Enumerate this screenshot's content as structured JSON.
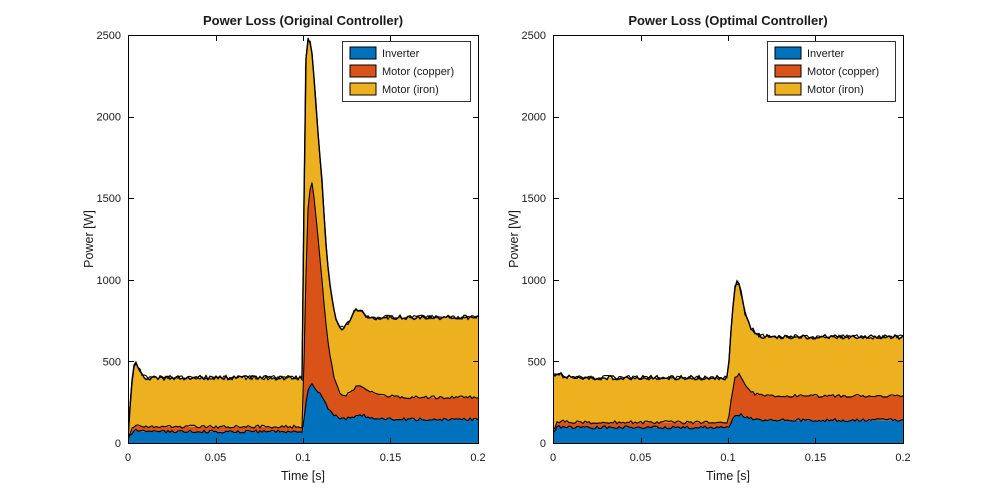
{
  "figure": {
    "background": "#ffffff",
    "axis_color": "#000000",
    "text_color": "#191919"
  },
  "chart_data": [
    {
      "type": "area",
      "stacked": true,
      "title": "Power Loss (Original Controller)",
      "xlabel": "Time [s]",
      "ylabel": "Power [W]",
      "xlim": [
        0,
        0.2
      ],
      "ylim": [
        0,
        2500
      ],
      "xticks": [
        0,
        0.05,
        0.1,
        0.15,
        0.2
      ],
      "xtick_labels": [
        "0",
        "0.05",
        "0.1",
        "0.15",
        "0.2"
      ],
      "yticks": [
        0,
        500,
        1000,
        1500,
        2000,
        2500
      ],
      "ytick_labels": [
        "0",
        "500",
        "1000",
        "1500",
        "2000",
        "2500"
      ],
      "grid": false,
      "legend": {
        "position": "northeast-inside",
        "entries": [
          "Inverter",
          "Motor (copper)",
          "Motor (iron)"
        ]
      },
      "colors": [
        "#0072BD",
        "#D95319",
        "#EDB120"
      ],
      "edge_color": "#000000",
      "x": [
        0,
        0.002,
        0.004,
        0.006,
        0.008,
        0.01,
        0.02,
        0.04,
        0.06,
        0.08,
        0.09,
        0.1,
        0.101,
        0.103,
        0.105,
        0.107,
        0.109,
        0.111,
        0.113,
        0.115,
        0.118,
        0.121,
        0.124,
        0.127,
        0.13,
        0.133,
        0.136,
        0.14,
        0.145,
        0.15,
        0.16,
        0.17,
        0.18,
        0.19,
        0.2
      ],
      "series": [
        {
          "name": "Inverter",
          "values": [
            15,
            60,
            75,
            72,
            70,
            70,
            70,
            70,
            70,
            70,
            70,
            70,
            200,
            340,
            360,
            340,
            310,
            280,
            240,
            200,
            170,
            150,
            150,
            155,
            165,
            170,
            165,
            155,
            150,
            148,
            145,
            145,
            145,
            145,
            145
          ]
        },
        {
          "name": "Motor (copper)",
          "values": [
            5,
            20,
            35,
            32,
            30,
            30,
            30,
            30,
            30,
            30,
            30,
            30,
            600,
            1150,
            1250,
            1100,
            900,
            700,
            500,
            350,
            220,
            150,
            140,
            150,
            180,
            185,
            170,
            150,
            140,
            138,
            135,
            135,
            135,
            135,
            135
          ]
        },
        {
          "name": "Motor (iron)",
          "values": [
            10,
            280,
            400,
            360,
            320,
            300,
            300,
            300,
            300,
            300,
            300,
            300,
            1500,
            1000,
            800,
            700,
            640,
            600,
            500,
            450,
            400,
            400,
            420,
            450,
            475,
            460,
            445,
            460,
            480,
            484,
            490,
            490,
            490,
            490,
            490
          ]
        }
      ]
    },
    {
      "type": "area",
      "stacked": true,
      "title": "Power Loss (Optimal Controller)",
      "xlabel": "Time [s]",
      "ylabel": "Power [W]",
      "xlim": [
        0,
        0.2
      ],
      "ylim": [
        0,
        2500
      ],
      "xticks": [
        0,
        0.05,
        0.1,
        0.15,
        0.2
      ],
      "xtick_labels": [
        "0",
        "0.05",
        "0.1",
        "0.15",
        "0.2"
      ],
      "yticks": [
        0,
        500,
        1000,
        1500,
        2000,
        2500
      ],
      "ytick_labels": [
        "0",
        "500",
        "1000",
        "1500",
        "2000",
        "2500"
      ],
      "grid": false,
      "legend": {
        "position": "northeast-inside",
        "entries": [
          "Inverter",
          "Motor (copper)",
          "Motor (iron)"
        ]
      },
      "colors": [
        "#0072BD",
        "#D95319",
        "#EDB120"
      ],
      "edge_color": "#000000",
      "x": [
        0,
        0.002,
        0.004,
        0.006,
        0.008,
        0.01,
        0.02,
        0.04,
        0.06,
        0.08,
        0.09,
        0.1,
        0.102,
        0.104,
        0.106,
        0.108,
        0.11,
        0.113,
        0.116,
        0.12,
        0.125,
        0.13,
        0.14,
        0.15,
        0.16,
        0.17,
        0.18,
        0.19,
        0.2
      ],
      "series": [
        {
          "name": "Inverter",
          "values": [
            60,
            95,
            100,
            98,
            96,
            95,
            95,
            95,
            95,
            95,
            95,
            95,
            130,
            165,
            175,
            170,
            160,
            150,
            145,
            142,
            140,
            140,
            140,
            140,
            140,
            140,
            140,
            140,
            140
          ]
        },
        {
          "name": "Motor (copper)",
          "values": [
            10,
            30,
            35,
            33,
            32,
            32,
            32,
            32,
            32,
            32,
            32,
            32,
            150,
            230,
            250,
            220,
            190,
            165,
            155,
            150,
            148,
            148,
            148,
            148,
            148,
            148,
            148,
            148,
            148
          ]
        },
        {
          "name": "Motor (iron)",
          "values": [
            350,
            295,
            285,
            280,
            276,
            273,
            273,
            273,
            273,
            273,
            273,
            273,
            450,
            560,
            575,
            500,
            430,
            390,
            370,
            362,
            362,
            362,
            362,
            362,
            362,
            362,
            362,
            362,
            362
          ]
        }
      ]
    }
  ]
}
